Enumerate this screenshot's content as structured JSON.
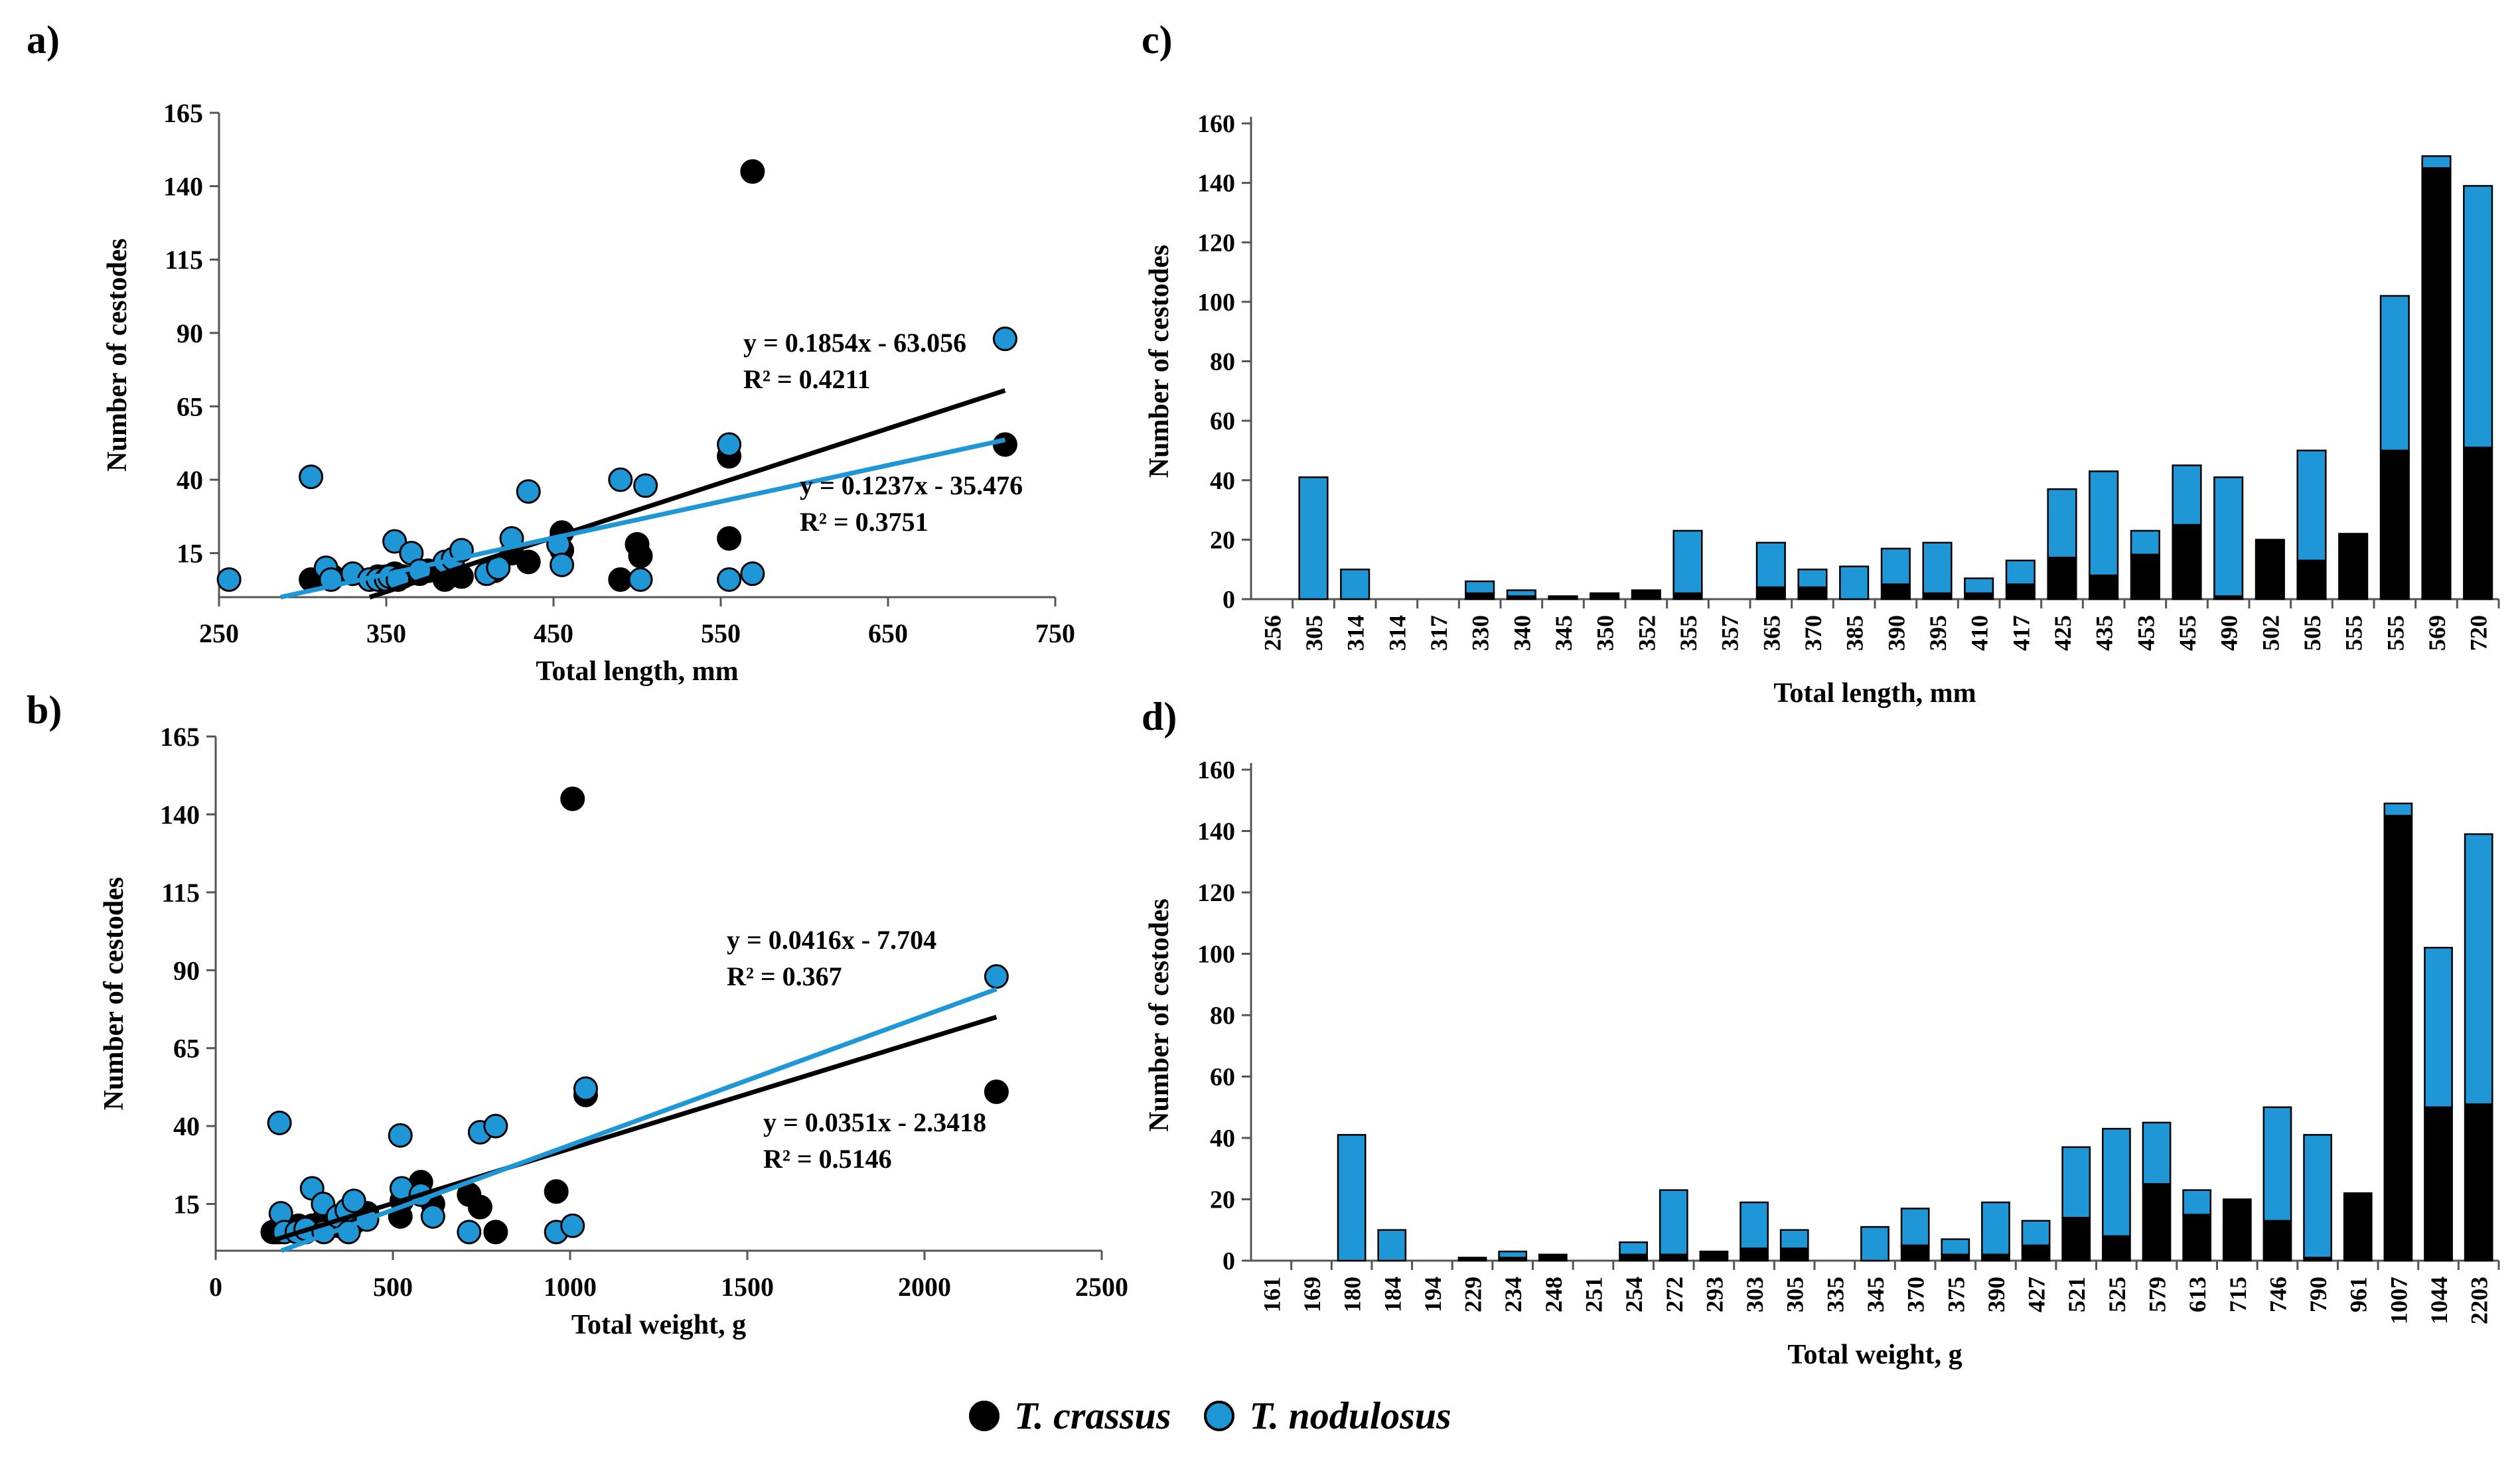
{
  "colors": {
    "crassus": "#000000",
    "nodulosus": "#1f97d6",
    "outline": "#000000"
  },
  "legend": {
    "crassus": "T. crassus",
    "nodulosus": "T. nodulosus"
  },
  "chart_data": [
    {
      "id": "a",
      "panel_label": "a)",
      "type": "scatter",
      "xlabel": "Total length, mm",
      "ylabel": "Number of cestodes",
      "xlim": [
        250,
        750
      ],
      "ylim": [
        0,
        165
      ],
      "xticks": [
        250,
        350,
        450,
        550,
        650,
        750
      ],
      "yticks": [
        15,
        40,
        65,
        90,
        115,
        140,
        165
      ],
      "series": [
        {
          "name": "T. crassus",
          "color_key": "crassus",
          "points": [
            [
              305,
              6
            ],
            [
              318,
              7
            ],
            [
              330,
              8
            ],
            [
              340,
              6
            ],
            [
              345,
              7
            ],
            [
              350,
              7
            ],
            [
              355,
              8
            ],
            [
              360,
              7
            ],
            [
              370,
              8
            ],
            [
              375,
              9
            ],
            [
              385,
              6
            ],
            [
              390,
              10
            ],
            [
              395,
              7
            ],
            [
              410,
              8
            ],
            [
              415,
              9
            ],
            [
              425,
              15
            ],
            [
              435,
              12
            ],
            [
              455,
              16
            ],
            [
              455,
              22
            ],
            [
              490,
              6
            ],
            [
              500,
              18
            ],
            [
              502,
              14
            ],
            [
              555,
              20
            ],
            [
              555,
              48
            ],
            [
              569,
              145
            ],
            [
              720,
              52
            ]
          ],
          "trend": {
            "slope": 0.1854,
            "intercept": -63.056,
            "equation": "y = 0.1854x - 63.056",
            "r2": "R² = 0.4211"
          }
        },
        {
          "name": "T. nodulosus",
          "color_key": "nodulosus",
          "points": [
            [
              256,
              6
            ],
            [
              305,
              41
            ],
            [
              314,
              10
            ],
            [
              317,
              6
            ],
            [
              330,
              8
            ],
            [
              340,
              6
            ],
            [
              345,
              6
            ],
            [
              350,
              6
            ],
            [
              352,
              7
            ],
            [
              355,
              19
            ],
            [
              357,
              6
            ],
            [
              365,
              15
            ],
            [
              370,
              9
            ],
            [
              385,
              12
            ],
            [
              390,
              13
            ],
            [
              395,
              16
            ],
            [
              410,
              8
            ],
            [
              417,
              10
            ],
            [
              425,
              20
            ],
            [
              435,
              36
            ],
            [
              453,
              18
            ],
            [
              455,
              11
            ],
            [
              490,
              40
            ],
            [
              502,
              6
            ],
            [
              505,
              38
            ],
            [
              555,
              6
            ],
            [
              555,
              52
            ],
            [
              569,
              8
            ],
            [
              720,
              88
            ]
          ],
          "trend": {
            "slope": 0.1237,
            "intercept": -35.476,
            "equation": "y = 0.1237x - 35.476",
            "r2": "R² = 0.3751"
          }
        }
      ]
    },
    {
      "id": "b",
      "panel_label": "b)",
      "type": "scatter",
      "xlabel": "Total weight, g",
      "ylabel": "Number of cestodes",
      "xlim": [
        0,
        2500
      ],
      "ylim": [
        0,
        165
      ],
      "xticks": [
        0,
        500,
        1000,
        1500,
        2000,
        2500
      ],
      "yticks": [
        15,
        40,
        65,
        90,
        115,
        140,
        165
      ],
      "series": [
        {
          "name": "T. crassus",
          "color_key": "crassus",
          "points": [
            [
              161,
              6
            ],
            [
              169,
              6
            ],
            [
              180,
              6
            ],
            [
              194,
              7
            ],
            [
              229,
              7
            ],
            [
              234,
              8
            ],
            [
              248,
              6
            ],
            [
              251,
              7
            ],
            [
              254,
              6
            ],
            [
              272,
              8
            ],
            [
              293,
              7
            ],
            [
              303,
              9
            ],
            [
              305,
              10
            ],
            [
              345,
              8
            ],
            [
              370,
              9
            ],
            [
              375,
              7
            ],
            [
              390,
              9
            ],
            [
              427,
              12
            ],
            [
              521,
              11
            ],
            [
              525,
              16
            ],
            [
              579,
              22
            ],
            [
              613,
              15
            ],
            [
              715,
              18
            ],
            [
              746,
              14
            ],
            [
              790,
              6
            ],
            [
              961,
              19
            ],
            [
              1007,
              145
            ],
            [
              1044,
              50
            ],
            [
              2203,
              51
            ]
          ],
          "trend": {
            "slope": 0.0351,
            "intercept": -2.3418,
            "equation": "y = 0.0351x - 2.3418",
            "r2": "R² = 0.5146"
          }
        },
        {
          "name": "T. nodulosus",
          "color_key": "nodulosus",
          "points": [
            [
              180,
              41
            ],
            [
              184,
              12
            ],
            [
              194,
              6
            ],
            [
              229,
              6
            ],
            [
              254,
              7
            ],
            [
              272,
              20
            ],
            [
              303,
              15
            ],
            [
              305,
              6
            ],
            [
              345,
              11
            ],
            [
              370,
              13
            ],
            [
              375,
              6
            ],
            [
              390,
              16
            ],
            [
              427,
              10
            ],
            [
              521,
              37
            ],
            [
              525,
              20
            ],
            [
              579,
              18
            ],
            [
              613,
              11
            ],
            [
              715,
              6
            ],
            [
              746,
              38
            ],
            [
              790,
              40
            ],
            [
              961,
              6
            ],
            [
              1007,
              8
            ],
            [
              1044,
              52
            ],
            [
              2203,
              88
            ]
          ],
          "trend": {
            "slope": 0.0416,
            "intercept": -7.704,
            "equation": "y = 0.0416x - 7.704",
            "r2": "R² = 0.367"
          }
        }
      ]
    },
    {
      "id": "c",
      "panel_label": "c)",
      "type": "bar",
      "xlabel": "Total length, mm",
      "ylabel": "Number of cestodes",
      "ylim": [
        0,
        160
      ],
      "yticks": [
        0,
        20,
        40,
        60,
        80,
        100,
        120,
        140,
        160
      ],
      "categories": [
        "256",
        "305",
        "314",
        "314",
        "317",
        "330",
        "340",
        "345",
        "350",
        "352",
        "355",
        "357",
        "365",
        "370",
        "385",
        "390",
        "395",
        "410",
        "417",
        "425",
        "435",
        "453",
        "455",
        "490",
        "502",
        "505",
        "555",
        "555",
        "569",
        "720"
      ],
      "series": [
        {
          "name": "T. crassus",
          "color_key": "crassus",
          "values": [
            0,
            0,
            0,
            0,
            0,
            2,
            1,
            1,
            2,
            3,
            2,
            0,
            4,
            4,
            0,
            5,
            2,
            2,
            5,
            14,
            8,
            15,
            25,
            1,
            20,
            13,
            22,
            50,
            145,
            51
          ]
        },
        {
          "name": "T. nodulosus",
          "color_key": "nodulosus",
          "values": [
            0,
            41,
            10,
            0,
            0,
            4,
            2,
            0,
            0,
            0,
            21,
            0,
            15,
            6,
            11,
            12,
            17,
            5,
            8,
            23,
            35,
            8,
            20,
            40,
            0,
            37,
            0,
            52,
            4,
            88
          ]
        }
      ]
    },
    {
      "id": "d",
      "panel_label": "d)",
      "type": "bar",
      "xlabel": "Total weight, g",
      "ylabel": "Number of cestodes",
      "ylim": [
        0,
        160
      ],
      "yticks": [
        0,
        20,
        40,
        60,
        80,
        100,
        120,
        140,
        160
      ],
      "categories": [
        "161",
        "169",
        "180",
        "184",
        "194",
        "229",
        "234",
        "248",
        "251",
        "254",
        "272",
        "293",
        "303",
        "305",
        "335",
        "345",
        "370",
        "375",
        "390",
        "427",
        "521",
        "525",
        "579",
        "613",
        "715",
        "746",
        "790",
        "961",
        "1007",
        "1044",
        "2203"
      ],
      "series": [
        {
          "name": "T. crassus",
          "color_key": "crassus",
          "values": [
            0,
            0,
            0,
            0,
            0,
            1,
            1,
            2,
            0,
            2,
            2,
            3,
            4,
            4,
            0,
            0,
            5,
            2,
            2,
            5,
            14,
            8,
            25,
            15,
            20,
            13,
            1,
            22,
            145,
            50,
            51
          ]
        },
        {
          "name": "T. nodulosus",
          "color_key": "nodulosus",
          "values": [
            0,
            0,
            41,
            10,
            0,
            0,
            2,
            0,
            0,
            4,
            21,
            0,
            15,
            6,
            0,
            11,
            12,
            5,
            17,
            8,
            23,
            35,
            20,
            8,
            0,
            37,
            40,
            0,
            4,
            52,
            88
          ]
        }
      ]
    }
  ]
}
